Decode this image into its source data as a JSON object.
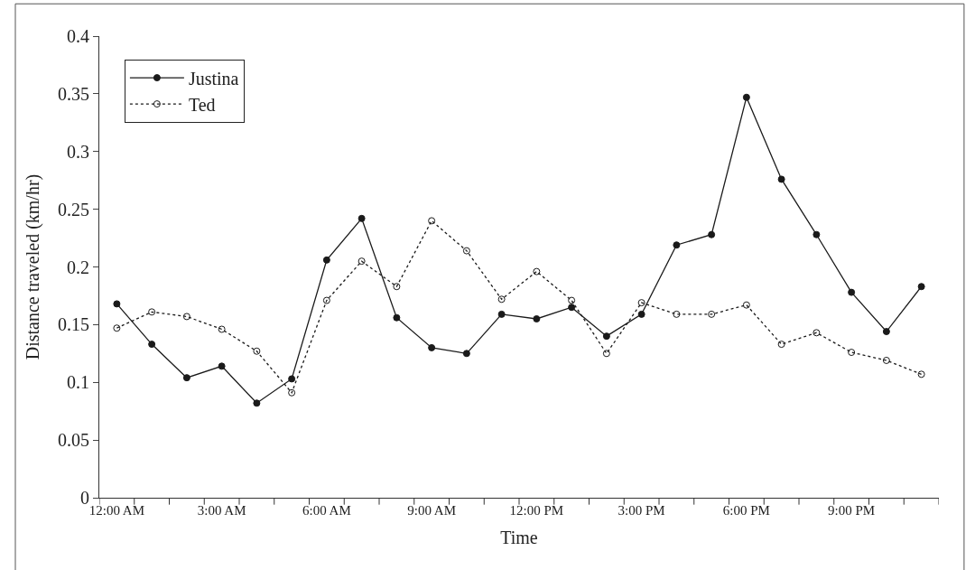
{
  "chart_data": {
    "type": "line",
    "xlabel": "Time",
    "ylabel": "Distance traveled (km/hr)",
    "categories": [
      "12:00 AM",
      null,
      null,
      "3:00 AM",
      null,
      null,
      "6:00 AM",
      null,
      null,
      "9:00 AM",
      null,
      null,
      "12:00 PM",
      null,
      null,
      "3:00 PM",
      null,
      null,
      "6:00 PM",
      null,
      null,
      "9:00 PM",
      null,
      null
    ],
    "series": [
      {
        "name": "Justina",
        "color": "#1a1a1a",
        "line_style": "solid",
        "values": [
          0.168,
          0.133,
          0.104,
          0.114,
          0.082,
          0.103,
          0.206,
          0.242,
          0.156,
          0.13,
          0.125,
          0.159,
          0.155,
          0.165,
          0.14,
          0.159,
          0.219,
          0.228,
          0.347,
          0.276,
          0.228,
          0.178,
          0.144,
          0.183
        ]
      },
      {
        "name": "Ted",
        "color": "#1a1a1a",
        "line_style": "dotted",
        "values": [
          0.147,
          0.161,
          0.157,
          0.146,
          0.127,
          0.091,
          0.171,
          0.205,
          0.183,
          0.24,
          0.214,
          0.172,
          0.196,
          0.171,
          0.125,
          0.169,
          0.159,
          0.159,
          0.167,
          0.133,
          0.143,
          0.126,
          0.119,
          0.107
        ]
      }
    ],
    "ylim": [
      0,
      0.4
    ],
    "yticks": [
      0,
      0.05,
      0.1,
      0.15,
      0.2,
      0.25,
      0.3,
      0.35,
      0.4
    ],
    "legend": "top left",
    "marker": "circle"
  }
}
